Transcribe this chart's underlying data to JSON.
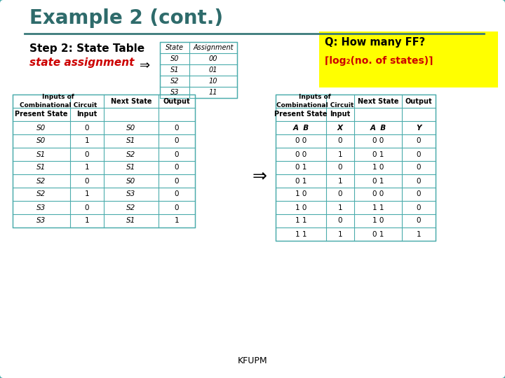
{
  "title": "Example 2 (cont.)",
  "title_color": "#2E6B6B",
  "bg_color": "#FFFFFF",
  "border_color": "#4AACAC",
  "step_text": "Step 2: State Table",
  "step_color": "#000000",
  "assign_text": "state assignment",
  "assign_color": "#CC0000",
  "q_box_bg": "#FFFF00",
  "q_line1": "Q: How many FF?",
  "q_line2": "⌈log₂(no. of states)⌉",
  "footer": "KFUPM",
  "small_table_headers": [
    "State",
    "Assignment"
  ],
  "small_table_data": [
    [
      "S0",
      "00"
    ],
    [
      "S1",
      "01"
    ],
    [
      "S2",
      "10"
    ],
    [
      "S3",
      "11"
    ]
  ],
  "left_table_data": [
    [
      "S0",
      "0",
      "S0",
      "0"
    ],
    [
      "S0",
      "1",
      "S1",
      "0"
    ],
    [
      "S1",
      "0",
      "S2",
      "0"
    ],
    [
      "S1",
      "1",
      "S1",
      "0"
    ],
    [
      "S2",
      "0",
      "S0",
      "0"
    ],
    [
      "S2",
      "1",
      "S3",
      "0"
    ],
    [
      "S3",
      "0",
      "S2",
      "0"
    ],
    [
      "S3",
      "1",
      "S1",
      "1"
    ]
  ],
  "right_table_data": [
    [
      "0 0",
      "0",
      "0 0",
      "0"
    ],
    [
      "0 0",
      "1",
      "0 1",
      "0"
    ],
    [
      "0 1",
      "0",
      "1 0",
      "0"
    ],
    [
      "0 1",
      "1",
      "0 1",
      "0"
    ],
    [
      "1 0",
      "0",
      "0 0",
      "0"
    ],
    [
      "1 0",
      "1",
      "1 1",
      "0"
    ],
    [
      "1 1",
      "0",
      "1 0",
      "0"
    ],
    [
      "1 1",
      "1",
      "0 1",
      "1"
    ]
  ]
}
